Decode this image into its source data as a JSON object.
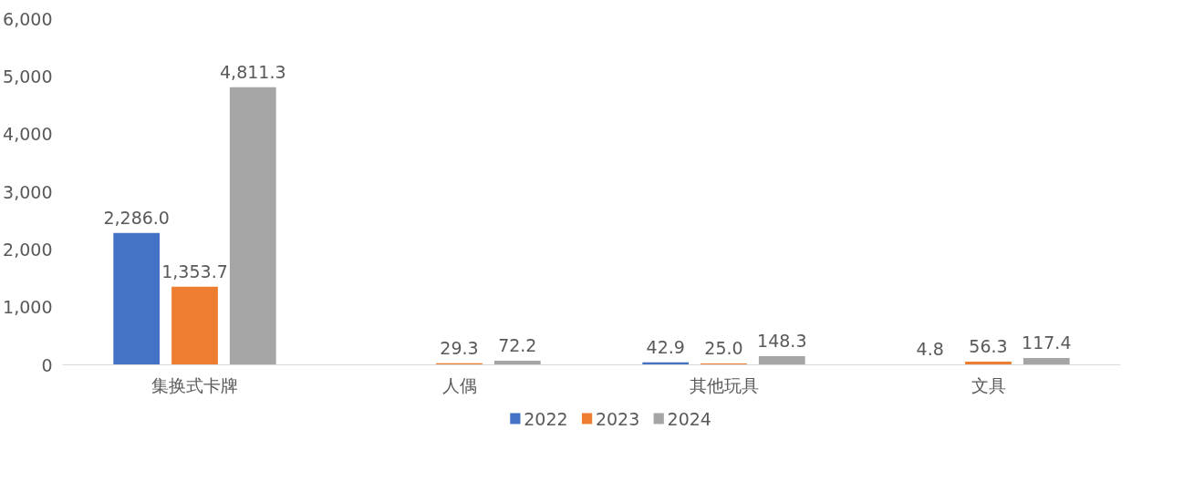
{
  "chart_data": {
    "type": "bar",
    "categories": [
      "集换式卡牌",
      "人偶",
      "其他玩具",
      "文具"
    ],
    "series": [
      {
        "name": "2022",
        "color": "#4472c4",
        "values": [
          2286.0,
          null,
          42.9,
          4.8
        ],
        "value_labels": [
          "2,286.0",
          null,
          "42.9",
          "4.8"
        ]
      },
      {
        "name": "2023",
        "color": "#ed7d31",
        "values": [
          1353.7,
          29.3,
          25.0,
          56.3
        ],
        "value_labels": [
          "1,353.7",
          "29.3",
          "25.0",
          "56.3"
        ]
      },
      {
        "name": "2024",
        "color": "#a5a5a5",
        "values": [
          4811.3,
          72.2,
          148.3,
          117.4
        ],
        "value_labels": [
          "4,811.3",
          "72.2",
          "148.3",
          "117.4"
        ]
      }
    ],
    "ylim": [
      0,
      6000
    ],
    "yticks": [
      {
        "value": 0,
        "label": "0"
      },
      {
        "value": 1000,
        "label": "1,000"
      },
      {
        "value": 2000,
        "label": "2,000"
      },
      {
        "value": 3000,
        "label": "3,000"
      },
      {
        "value": 4000,
        "label": "4,000"
      },
      {
        "value": 5000,
        "label": "5,000"
      },
      {
        "value": 6000,
        "label": "6,000"
      }
    ],
    "legend": "bottom"
  }
}
